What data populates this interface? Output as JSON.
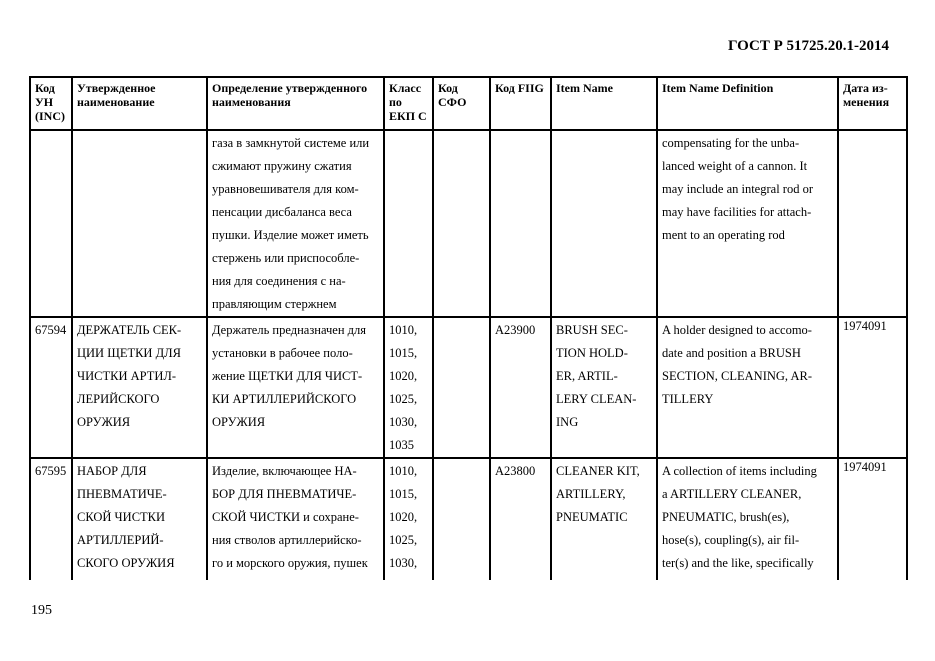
{
  "header": {
    "doc_title": "ГОСТ Р 51725.20.1-2014"
  },
  "table": {
    "columns": [
      "Код УН (INC)",
      "Утвержденное наименование",
      "Определение утвержденного наименования",
      "Класс по ЕКП С",
      "Код СФО",
      "Код FIIG",
      "Item Name",
      "Item Name Definition",
      "Дата из-менения"
    ],
    "rows": [
      {
        "inc": "",
        "name": "",
        "definition": "газа в замкнутой системе или\nсжимают пружину сжатия\nуравновешивателя для ком-\nпенсации дисбаланса веса\nпушки. Изделие может иметь\nстержень или приспособле-\nния для соединения с на-\nправляющим стержнем",
        "class": "",
        "sfo": "",
        "fiig": "",
        "item_name": "",
        "item_def": "compensating for the unba-\nlanced weight of a cannon. It\nmay include an integral rod or\nmay have facilities for attach-\nment to an operating rod",
        "date": ""
      },
      {
        "inc": "67594",
        "name": "ДЕРЖАТЕЛЬ СЕК-\nЦИИ ЩЕТКИ ДЛЯ\nЧИСТКИ АРТИЛ-\nЛЕРИЙСКОГО\nОРУЖИЯ",
        "definition": "Держатель предназначен для\nустановки в рабочее поло-\nжение ЩЕТКИ ДЛЯ ЧИСТ-\nКИ АРТИЛЛЕРИЙСКОГО\nОРУЖИЯ",
        "class": "1010,\n1015,\n1020,\n1025,\n1030,\n1035",
        "sfo": "",
        "fiig": "A23900",
        "item_name": "BRUSH SEC-\nTION HOLD-\nER, ARTIL-\nLERY CLEAN-\nING",
        "item_def": "A holder designed to accomo-\ndate and position a BRUSH\nSECTION, CLEANING, AR-\nTILLERY",
        "date": "1974091"
      },
      {
        "inc": "67595",
        "name": "НАБОР ДЛЯ\nПНЕВМАТИЧЕ-\nСКОЙ ЧИСТКИ\nАРТИЛЛЕРИЙ-\nСКОГО ОРУЖИЯ",
        "definition": "Изделие, включающее НА-\nБОР ДЛЯ ПНЕВМАТИЧЕ-\nСКОЙ ЧИСТКИ и сохране-\nния стволов артиллерийско-\nго и морского оружия, пушек",
        "class": "1010,\n1015,\n1020,\n1025,\n1030,",
        "sfo": "",
        "fiig": "A23800",
        "item_name": "CLEANER KIT,\nARTILLERY,\nPNEUMATIC",
        "item_def": "A collection of items including\na ARTILLERY CLEANER,\nPNEUMATIC, brush(es),\nhose(s), coupling(s), air fil-\nter(s) and the like, specifically",
        "date": "1974091"
      }
    ]
  },
  "footer": {
    "page_number": "195"
  }
}
